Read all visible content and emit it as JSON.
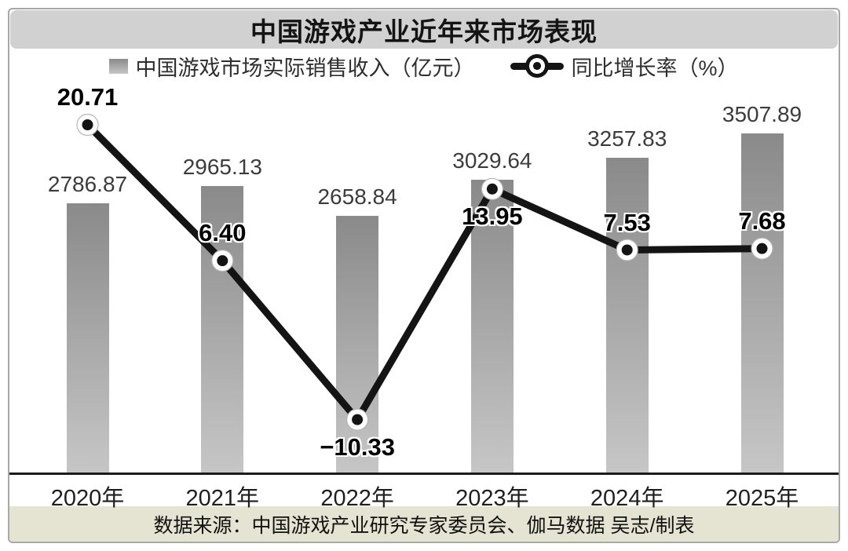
{
  "title": "中国游戏产业近年来市场表现",
  "legend": {
    "bar_label": "中国游戏市场实际销售收入（亿元）",
    "line_label": "同比增长率（%）"
  },
  "source": "数据来源：中国游戏产业研究专家委员会、伽马数据 吴志/制表",
  "colors": {
    "title_bg": "#d1d1d1",
    "footer_bg": "#e5e4d2",
    "bar_top": "#8a8a8a",
    "bar_bottom": "#c6c6c6",
    "line_color": "#141414",
    "axis_color": "#1c1c1c"
  },
  "chart_data": {
    "type": "bar",
    "title": "中国游戏产业近年来市场表现",
    "xlabel": "",
    "ylabel": "",
    "grid": false,
    "legend_position": "top",
    "categories": [
      "2020年",
      "2021年",
      "2022年",
      "2023年",
      "2024年",
      "2025年"
    ],
    "series": [
      {
        "name": "中国游戏市场实际销售收入（亿元）",
        "type": "bar",
        "values": [
          2786.87,
          2965.13,
          2658.84,
          3029.64,
          3257.83,
          3507.89
        ],
        "labels": [
          "2786.87",
          "2965.13",
          "2658.84",
          "3029.64",
          "3257.83",
          "3507.89"
        ]
      },
      {
        "name": "同比增长率（%）",
        "type": "line",
        "values": [
          20.71,
          6.4,
          -10.33,
          13.95,
          7.53,
          7.68
        ],
        "labels": [
          "20.71",
          "6.40",
          "−10.33",
          "13.95",
          "7.53",
          "7.68"
        ],
        "label_positions": [
          "above",
          "above",
          "below",
          "below",
          "above",
          "above"
        ]
      }
    ]
  }
}
